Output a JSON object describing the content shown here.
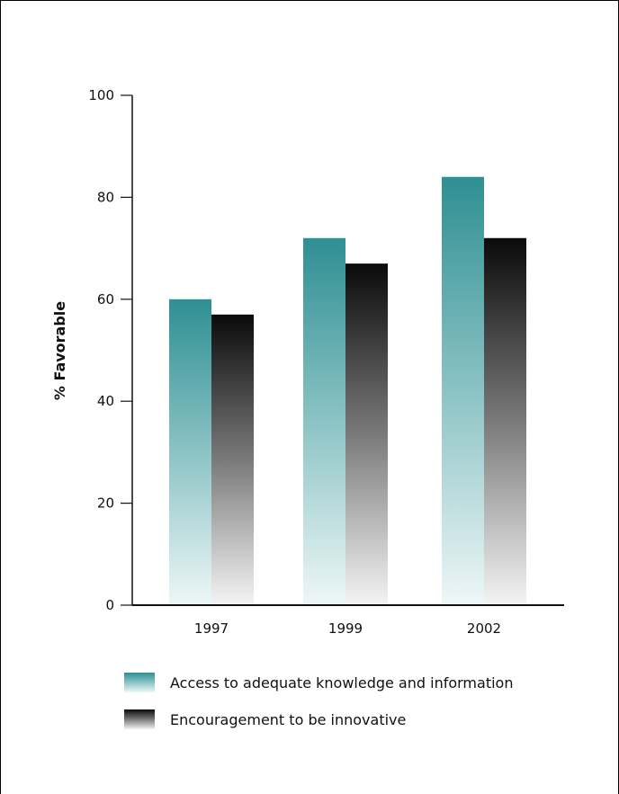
{
  "chart_data": {
    "type": "bar",
    "categories": [
      "1997",
      "1999",
      "2002"
    ],
    "series": [
      {
        "name": "Access to adequate knowledge and information",
        "values": [
          60,
          72,
          84
        ],
        "color": "#2e8f92"
      },
      {
        "name": "Encouragement to be innovative",
        "values": [
          57,
          67,
          72
        ],
        "color": "#111111"
      }
    ],
    "ylabel": "% Favorable",
    "ylim": [
      0,
      100
    ],
    "yticks": [
      0,
      20,
      40,
      60,
      80,
      100
    ],
    "grid": false,
    "legend": "bottom"
  }
}
